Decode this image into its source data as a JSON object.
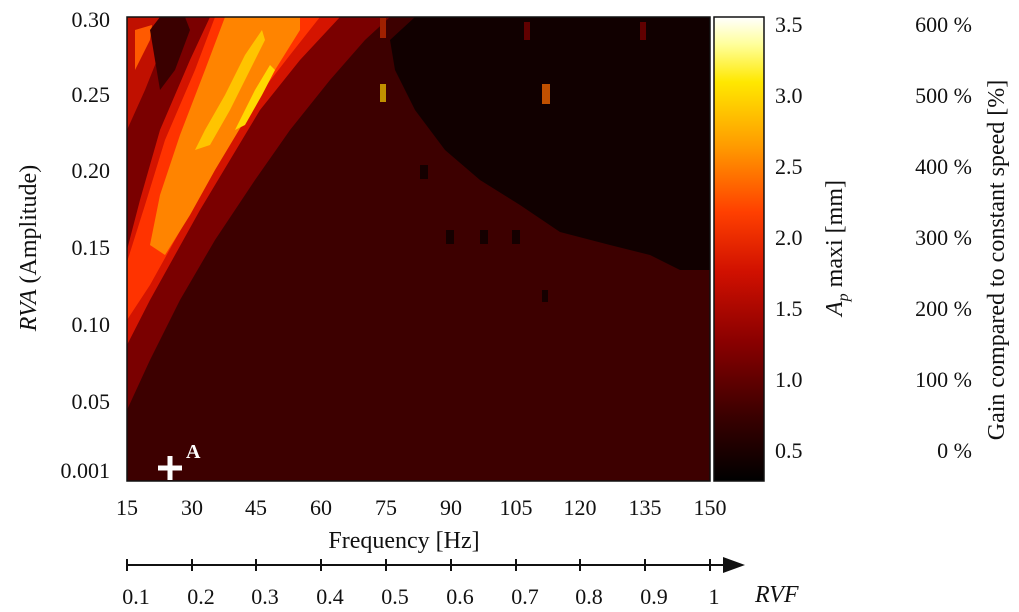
{
  "chart_data": {
    "type": "heatmap",
    "title": "",
    "xlabel": "Frequency [Hz]",
    "ylabel": {
      "italic": "RVA",
      "rest": " (Amplitude)"
    },
    "x_ticks": [
      "15",
      "30",
      "45",
      "60",
      "75",
      "90",
      "105",
      "120",
      "135",
      "150"
    ],
    "x_range": [
      15,
      150
    ],
    "y_ticks": [
      "0.001",
      "0.05",
      "0.10",
      "0.15",
      "0.20",
      "0.25",
      "0.30"
    ],
    "y_range": [
      0.001,
      0.3
    ],
    "colorbar": {
      "label_main": "A",
      "label_sub": "p",
      "label_rest": " maxi [mm]",
      "ticks": [
        "0.5",
        "1.0",
        "1.5",
        "2.0",
        "2.5",
        "3.0",
        "3.5"
      ],
      "range": [
        0.3,
        3.55
      ],
      "colors": [
        "#000000",
        "#5a0000",
        "#b80000",
        "#ff2a00",
        "#ff8c00",
        "#ffd200",
        "#ffff66",
        "#ffffff"
      ]
    },
    "gain_axis": {
      "label": "Gain compared to constant speed [%]",
      "ticks": [
        "600 %",
        "500 %",
        "400 %",
        "300 %",
        "200 %",
        "100 %",
        "0 %"
      ]
    },
    "rvf_axis": {
      "label": "RVF",
      "ticks": [
        "0.1",
        "0.2",
        "0.3",
        "0.4",
        "0.5",
        "0.6",
        "0.7",
        "0.8",
        "0.9",
        "1"
      ]
    },
    "annotation": {
      "label": "A",
      "marker": "plus"
    },
    "regions": [
      {
        "description": "high-amplitude band (bright)",
        "value_range": [
          1.6,
          3.2
        ]
      },
      {
        "description": "moderate band",
        "value_range": [
          1.0,
          1.6
        ]
      },
      {
        "description": "background",
        "value": 0.45
      },
      {
        "description": "dark upper-right",
        "value": 0.3
      }
    ]
  }
}
